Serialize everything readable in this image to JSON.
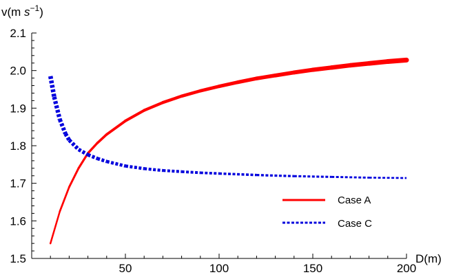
{
  "chart_data": {
    "type": "line",
    "xlabel": "D(m)",
    "ylabel_main": "v(m ",
    "ylabel_unit": "s",
    "ylabel_exp": "−1",
    "ylabel_close": ")",
    "xlim": [
      0,
      200
    ],
    "ylim": [
      1.5,
      2.1
    ],
    "x_ticks": [
      50,
      100,
      150,
      200
    ],
    "y_ticks": [
      1.5,
      1.6,
      1.7,
      1.8,
      1.9,
      2.0,
      2.1
    ],
    "y_tick_labels": [
      "1.5",
      "1.6",
      "1.7",
      "1.8",
      "1.9",
      "2.0",
      "2.1"
    ],
    "x_tick_labels": [
      "50",
      "100",
      "150",
      "200"
    ],
    "legend_position": "lower-right",
    "series": [
      {
        "name": "Case A",
        "color": "#ff0000",
        "dash": "solid",
        "x": [
          10,
          15,
          20,
          25,
          30,
          35,
          40,
          50,
          60,
          70,
          80,
          90,
          100,
          110,
          120,
          130,
          140,
          150,
          160,
          170,
          180,
          190,
          200
        ],
        "y": [
          1.54,
          1.625,
          1.69,
          1.74,
          1.78,
          1.807,
          1.83,
          1.866,
          1.894,
          1.915,
          1.932,
          1.946,
          1.958,
          1.969,
          1.979,
          1.987,
          1.995,
          2.002,
          2.008,
          2.014,
          2.019,
          2.024,
          2.028
        ]
      },
      {
        "name": "Case C",
        "color": "#0000dd",
        "dash": "dotted",
        "x": [
          10,
          12,
          15,
          18,
          20,
          25,
          30,
          35,
          40,
          50,
          60,
          70,
          80,
          90,
          100,
          120,
          140,
          160,
          180,
          200
        ],
        "y": [
          1.985,
          1.93,
          1.87,
          1.832,
          1.815,
          1.79,
          1.776,
          1.766,
          1.758,
          1.746,
          1.739,
          1.734,
          1.731,
          1.728,
          1.726,
          1.722,
          1.719,
          1.717,
          1.715,
          1.714
        ]
      }
    ]
  }
}
